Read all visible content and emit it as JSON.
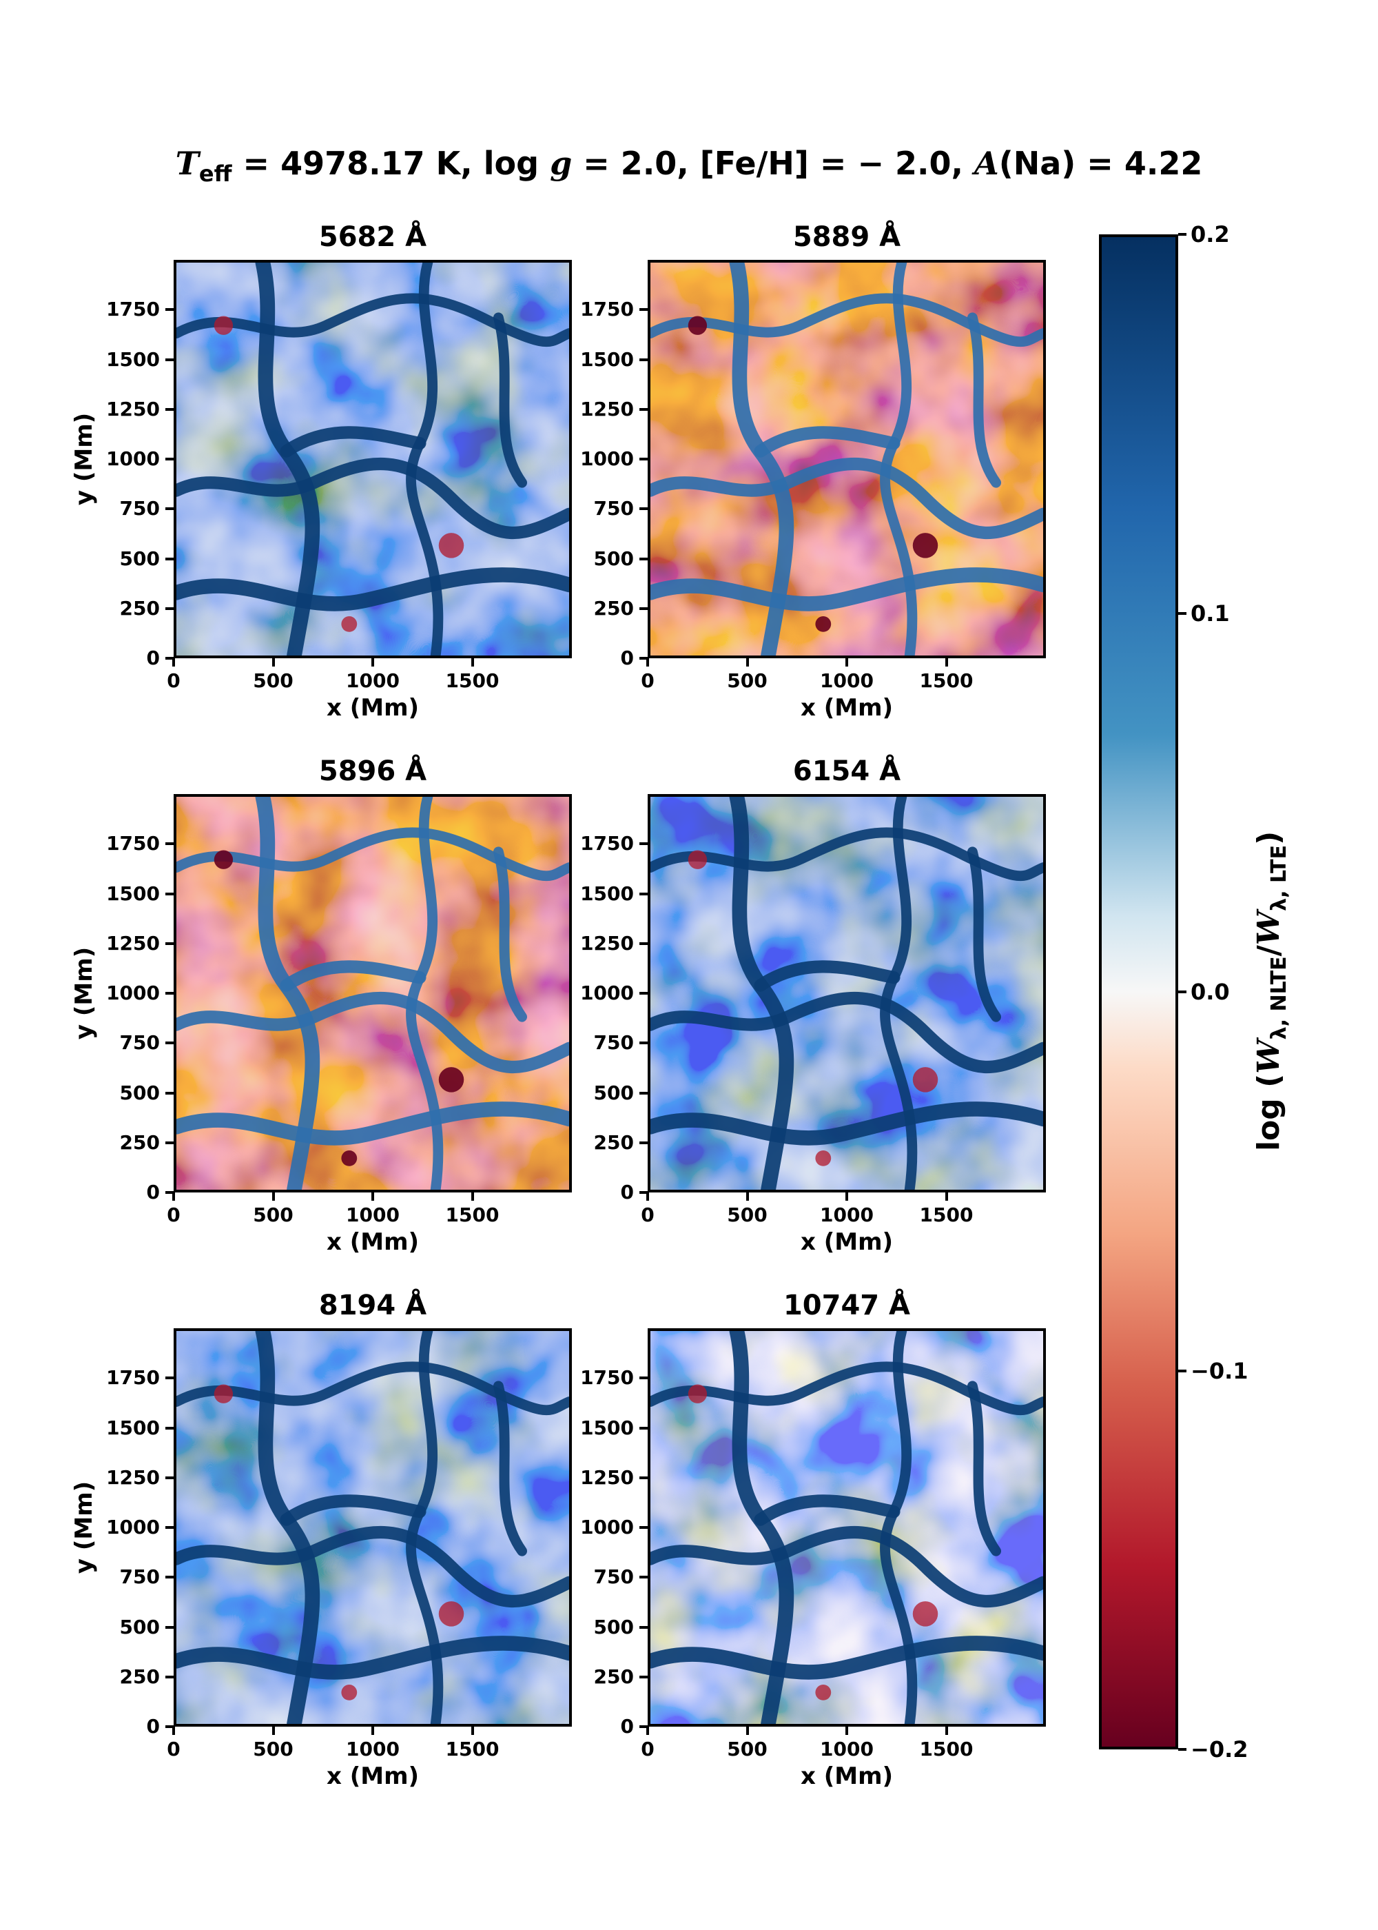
{
  "figure": {
    "suptitle_parts": {
      "teff_symbol": "T",
      "teff_sub": "eff",
      "teff_value": " = 4978.17 K, ",
      "logg_text": "log ",
      "g_symbol": "g",
      "logg_value": " = 2.0, [Fe/H] = − 2.0, ",
      "a_symbol": "A",
      "ana_value": "(Na) = 4.22"
    }
  },
  "chart_data": {
    "type": "heatmap",
    "colormap": "RdBu",
    "colors": {
      "min": "#67001f",
      "low": "#d6604d",
      "mid": "#f7f7f7",
      "high": "#4393c3",
      "max": "#053061"
    },
    "xlabel": "x (Mm)",
    "ylabel": "y (Mm)",
    "xlim": [
      0,
      2000
    ],
    "ylim": [
      0,
      2000
    ],
    "xticks": [
      "0",
      "500",
      "1000",
      "1500"
    ],
    "yticks": [
      "0",
      "250",
      "500",
      "750",
      "1000",
      "1250",
      "1500",
      "1750"
    ],
    "xtick_values": [
      0,
      500,
      1000,
      1500
    ],
    "ytick_values": [
      0,
      250,
      500,
      750,
      1000,
      1250,
      1500,
      1750
    ],
    "panels": [
      {
        "title": "5682 Å",
        "bias": 0.055
      },
      {
        "title": "5889 Å",
        "bias": -0.075
      },
      {
        "title": "5896 Å",
        "bias": -0.085
      },
      {
        "title": "6154 Å",
        "bias": 0.075
      },
      {
        "title": "8194 Å",
        "bias": 0.07
      },
      {
        "title": "10747 Å",
        "bias": 0.02
      }
    ],
    "colorbar": {
      "label_prefix": "log (",
      "W": "W",
      "sub_nlte": "λ, NLTE",
      "slash": "/",
      "sub_lte": "λ, LTE",
      "label_suffix": ")",
      "vmin": -0.2,
      "vmax": 0.2,
      "ticks": [
        "0.2",
        "0.1",
        "0.0",
        "−0.1",
        "−0.2"
      ],
      "tick_values": [
        0.2,
        0.1,
        0.0,
        -0.1,
        -0.2
      ]
    }
  }
}
